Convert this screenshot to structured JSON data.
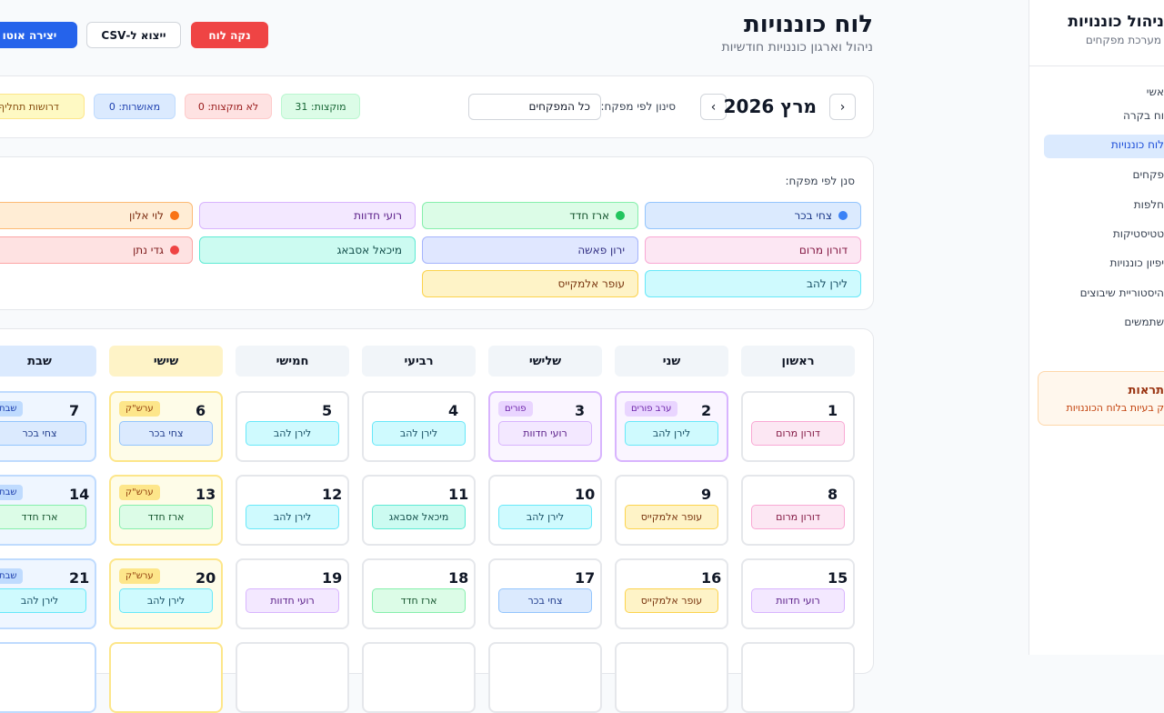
{
  "sidebar": {
    "title": "ניהול כוננויות",
    "subtitle": "מערכת מפקחים",
    "nav": [
      "אשי",
      "וח בקרה",
      "לוח כוננויות",
      "פקחים",
      "חלפות",
      "טטיסטיקות",
      "יפיון כוננויות",
      "היסטוריית שיבוצים",
      "שתמשים"
    ],
    "active": 2,
    "alert": {
      "title": "תראות",
      "text": "ק בעיות בלוח הכוננויות"
    }
  },
  "header": {
    "title": "לוח כוננויות",
    "subtitle": "ניהול וארגון כוננויות חודשיות",
    "buttons": [
      "נקה לוח",
      "ייצוא ל-CSV",
      "יצירה אוטו"
    ]
  },
  "toolbar": {
    "month": "מרץ 2026",
    "filter_label": "סינון לפי מפקח:",
    "filter_value": "כל המפקחים",
    "stats": [
      "מוקצות: 31",
      "לא מוקצות: 0",
      "מאושרות: 0",
      "דרושות תחליף"
    ]
  },
  "legend": {
    "label": "סנן לפי מפקח:",
    "people": [
      {
        "name": "צחי בכר",
        "bg": "#dbeafe",
        "border": "#93c5fd",
        "text": "#1e3a8a",
        "dot": "#3b82f6"
      },
      {
        "name": "ארז חדד",
        "bg": "#dcfce7",
        "border": "#86efac",
        "text": "#14532d",
        "dot": "#22c55e"
      },
      {
        "name": "רועי חדוות",
        "bg": "#f3e8ff",
        "border": "#d8b4fe",
        "text": "#581c87"
      },
      {
        "name": "לוי אלון",
        "bg": "#ffedd5",
        "border": "#fdba74",
        "text": "#7c2d12",
        "dot": "#f97316"
      },
      {
        "name": "דורון מרום",
        "bg": "#fce7f3",
        "border": "#f9a8d4",
        "text": "#831843"
      },
      {
        "name": "ירון פאשה",
        "bg": "#e0e7ff",
        "border": "#a5b4fc",
        "text": "#312e81"
      },
      {
        "name": "מיכאל אסבאג",
        "bg": "#ccfbf1",
        "border": "#5eead4",
        "text": "#134e4a"
      },
      {
        "name": "גדי נתן",
        "bg": "#fee2e2",
        "border": "#fca5a5",
        "text": "#7f1d1d",
        "dot": "#ef4444"
      },
      {
        "name": "לירן להב",
        "bg": "#cffafe",
        "border": "#67e8f9",
        "text": "#164e63"
      },
      {
        "name": "עופר אלמקייס",
        "bg": "#fef3c7",
        "border": "#fcd34d",
        "text": "#78350f"
      }
    ]
  },
  "calendar": {
    "weekdays": [
      "ראשון",
      "שני",
      "שלישי",
      "רביעי",
      "חמישי",
      "שישי",
      "שבת"
    ],
    "weeks": [
      [
        {
          "day": 1,
          "assignee": "דורון מרום"
        },
        {
          "day": 2,
          "assignee": "לירן להב",
          "badge": "ערב פורים"
        },
        {
          "day": 3,
          "assignee": "רועי חדוות",
          "badge": "פורים"
        },
        {
          "day": 4,
          "assignee": "לירן להב"
        },
        {
          "day": 5,
          "assignee": "לירן להב"
        },
        {
          "day": 6,
          "assignee": "צחי בכר",
          "badge": "ערש\"ק"
        },
        {
          "day": 7,
          "assignee": "צחי בכר",
          "badge": "שבת"
        }
      ],
      [
        {
          "day": 8,
          "assignee": "דורון מרום"
        },
        {
          "day": 9,
          "assignee": "עופר אלמקייס"
        },
        {
          "day": 10,
          "assignee": "לירן להב"
        },
        {
          "day": 11,
          "assignee": "מיכאל אסבאג"
        },
        {
          "day": 12,
          "assignee": "לירן להב"
        },
        {
          "day": 13,
          "assignee": "ארז חדד",
          "badge": "ערש\"ק"
        },
        {
          "day": 14,
          "assignee": "ארז חדד",
          "badge": "שבת"
        }
      ],
      [
        {
          "day": 15,
          "assignee": "רועי חדוות"
        },
        {
          "day": 16,
          "assignee": "עופר אלמקייס"
        },
        {
          "day": 17,
          "assignee": "צחי בכר"
        },
        {
          "day": 18,
          "assignee": "ארז חדד"
        },
        {
          "day": 19,
          "assignee": "רועי חדוות"
        },
        {
          "day": 20,
          "assignee": "לירן להב",
          "badge": "ערש\"ק"
        },
        {
          "day": 21,
          "assignee": "לירן להב",
          "badge": "שבת"
        }
      ]
    ]
  }
}
